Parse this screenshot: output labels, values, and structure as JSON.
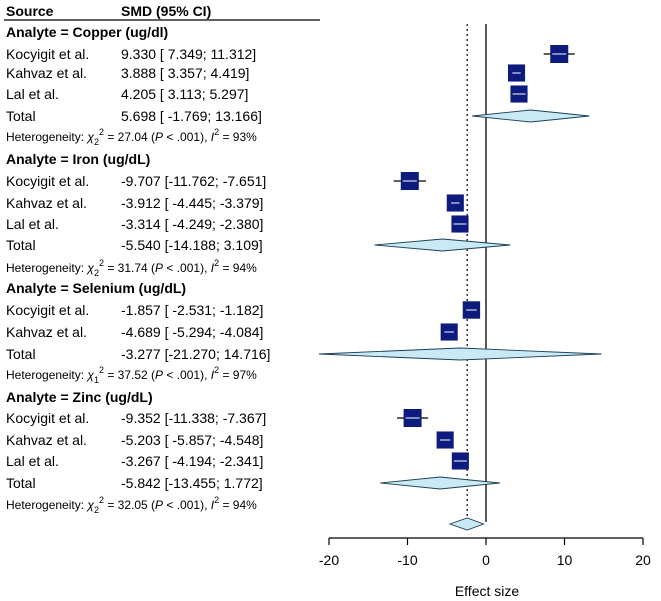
{
  "chart_data": {
    "type": "forest",
    "header": {
      "source": "Source",
      "smd": "SMD (95% CI)"
    },
    "xlabel": "Effect size",
    "xlim": [
      -20,
      20
    ],
    "xticks": [
      "-20",
      "-10",
      "0",
      "10",
      "20"
    ],
    "overall_effect": -2.4,
    "overall_ci": [
      -4.6,
      -0.3
    ],
    "groups": [
      {
        "title": "Analyte = Copper (ug/dl)",
        "studies": [
          {
            "name": "Kocyigit et al.",
            "ci_text": "9.330 [ 7.349; 11.312]",
            "es": 9.33,
            "lo": 7.349,
            "hi": 11.312,
            "w": 1.0
          },
          {
            "name": "Kahvaz et al.",
            "ci_text": "3.888 [ 3.357; 4.419]",
            "es": 3.888,
            "lo": 3.357,
            "hi": 4.419,
            "w": 0.85
          },
          {
            "name": "Lal et al.",
            "ci_text": "4.205 [ 3.113; 5.297]",
            "es": 4.205,
            "lo": 3.113,
            "hi": 5.297,
            "w": 0.85
          }
        ],
        "total": {
          "name": "Total",
          "ci_text": "5.698 [ -1.769; 13.166]",
          "es": 5.698,
          "lo": -1.769,
          "hi": 13.166
        },
        "het": {
          "prefix": "Heterogeneity: ",
          "chi": "χ",
          "df": "2",
          "sq": "2",
          "stat": " = 27.04 (",
          "p": "P",
          "pval": " < .001), ",
          "i": "I",
          "i2": "2",
          "ival": " = 93%"
        }
      },
      {
        "title": "Analyte = Iron (ug/dL)",
        "studies": [
          {
            "name": "Kocyigit et al.",
            "ci_text": "-9.707 [-11.762; -7.651]",
            "es": -9.707,
            "lo": -11.762,
            "hi": -7.651,
            "w": 1.0
          },
          {
            "name": "Kahvaz et al.",
            "ci_text": "-3.912 [ -4.445; -3.379]",
            "es": -3.912,
            "lo": -4.445,
            "hi": -3.379,
            "w": 0.85
          },
          {
            "name": "Lal et al.",
            "ci_text": "-3.314 [ -4.249; -2.380]",
            "es": -3.314,
            "lo": -4.249,
            "hi": -2.38,
            "w": 0.85
          }
        ],
        "total": {
          "name": "Total",
          "ci_text": "-5.540 [-14.188; 3.109]",
          "es": -5.54,
          "lo": -14.188,
          "hi": 3.109
        },
        "het": {
          "prefix": "Heterogeneity: ",
          "chi": "χ",
          "df": "2",
          "sq": "2",
          "stat": " = 31.74 (",
          "p": "P",
          "pval": " < .001), ",
          "i": "I",
          "i2": "2",
          "ival": " = 94%"
        }
      },
      {
        "title": "Analyte = Selenium (ug/dL)",
        "studies": [
          {
            "name": "Kocyigit et al.",
            "ci_text": "-1.857 [ -2.531; -1.182]",
            "es": -1.857,
            "lo": -2.531,
            "hi": -1.182,
            "w": 0.9
          },
          {
            "name": "Kahvaz et al.",
            "ci_text": "-4.689 [ -5.294; -4.084]",
            "es": -4.689,
            "lo": -5.294,
            "hi": -4.084,
            "w": 0.85
          }
        ],
        "total": {
          "name": "Total",
          "ci_text": "-3.277 [-21.270; 14.716]",
          "es": -3.277,
          "lo": -21.27,
          "hi": 14.716
        },
        "het": {
          "prefix": "Heterogeneity: ",
          "chi": "χ",
          "df": "1",
          "sq": "2",
          "stat": " = 37.52 (",
          "p": "P",
          "pval": " < .001), ",
          "i": "I",
          "i2": "2",
          "ival": " = 97%"
        }
      },
      {
        "title": "Analyte = Zinc (ug/dL)",
        "studies": [
          {
            "name": "Kocyigit et al.",
            "ci_text": "-9.352 [-11.338; -7.367]",
            "es": -9.352,
            "lo": -11.338,
            "hi": -7.367,
            "w": 1.0
          },
          {
            "name": "Kahvaz et al.",
            "ci_text": "-5.203 [ -5.857; -4.548]",
            "es": -5.203,
            "lo": -5.857,
            "hi": -4.548,
            "w": 0.85
          },
          {
            "name": "Lal et al.",
            "ci_text": "-3.267 [ -4.194; -2.341]",
            "es": -3.267,
            "lo": -4.194,
            "hi": -2.341,
            "w": 0.85
          }
        ],
        "total": {
          "name": "Total",
          "ci_text": "-5.842 [-13.455; 1.772]",
          "es": -5.842,
          "lo": -13.455,
          "hi": 1.772
        },
        "het": {
          "prefix": "Heterogeneity: ",
          "chi": "χ",
          "df": "2",
          "sq": "2",
          "stat": " = 32.05 (",
          "p": "P",
          "pval": " < .001), ",
          "i": "I",
          "i2": "2",
          "ival": " = 94%"
        }
      }
    ],
    "colors": {
      "square": "#0d1b7e",
      "diamond": "#c9e9f4",
      "ink": "#000000"
    }
  }
}
